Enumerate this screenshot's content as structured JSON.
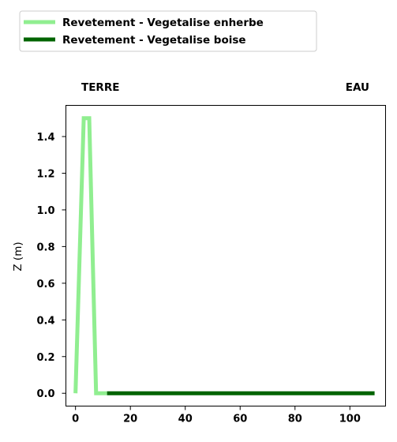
{
  "chart_data": {
    "type": "line",
    "title": "",
    "xlabel": "",
    "ylabel": "Z (m)",
    "xlim": [
      -3.5,
      113
    ],
    "ylim": [
      -0.07,
      1.57
    ],
    "xticks": [
      0,
      20,
      40,
      60,
      80,
      100
    ],
    "yticks": [
      0.0,
      0.2,
      0.4,
      0.6,
      0.8,
      1.0,
      1.2,
      1.4
    ],
    "grid": false,
    "legend_position": "top-left-outside",
    "annotations": {
      "left": "TERRE",
      "right": "EAU"
    },
    "series": [
      {
        "name": "Revetement - Vegetalise enherbe",
        "color": "#90ee90",
        "points": [
          [
            0,
            0.0
          ],
          [
            3,
            1.5
          ],
          [
            5,
            1.5
          ],
          [
            7.5,
            0.0
          ],
          [
            11.5,
            0.0
          ]
        ]
      },
      {
        "name": "Revetement - Vegetalise boise",
        "color": "#006400",
        "points": [
          [
            11.5,
            0.0
          ],
          [
            109,
            0.0
          ]
        ]
      }
    ]
  }
}
